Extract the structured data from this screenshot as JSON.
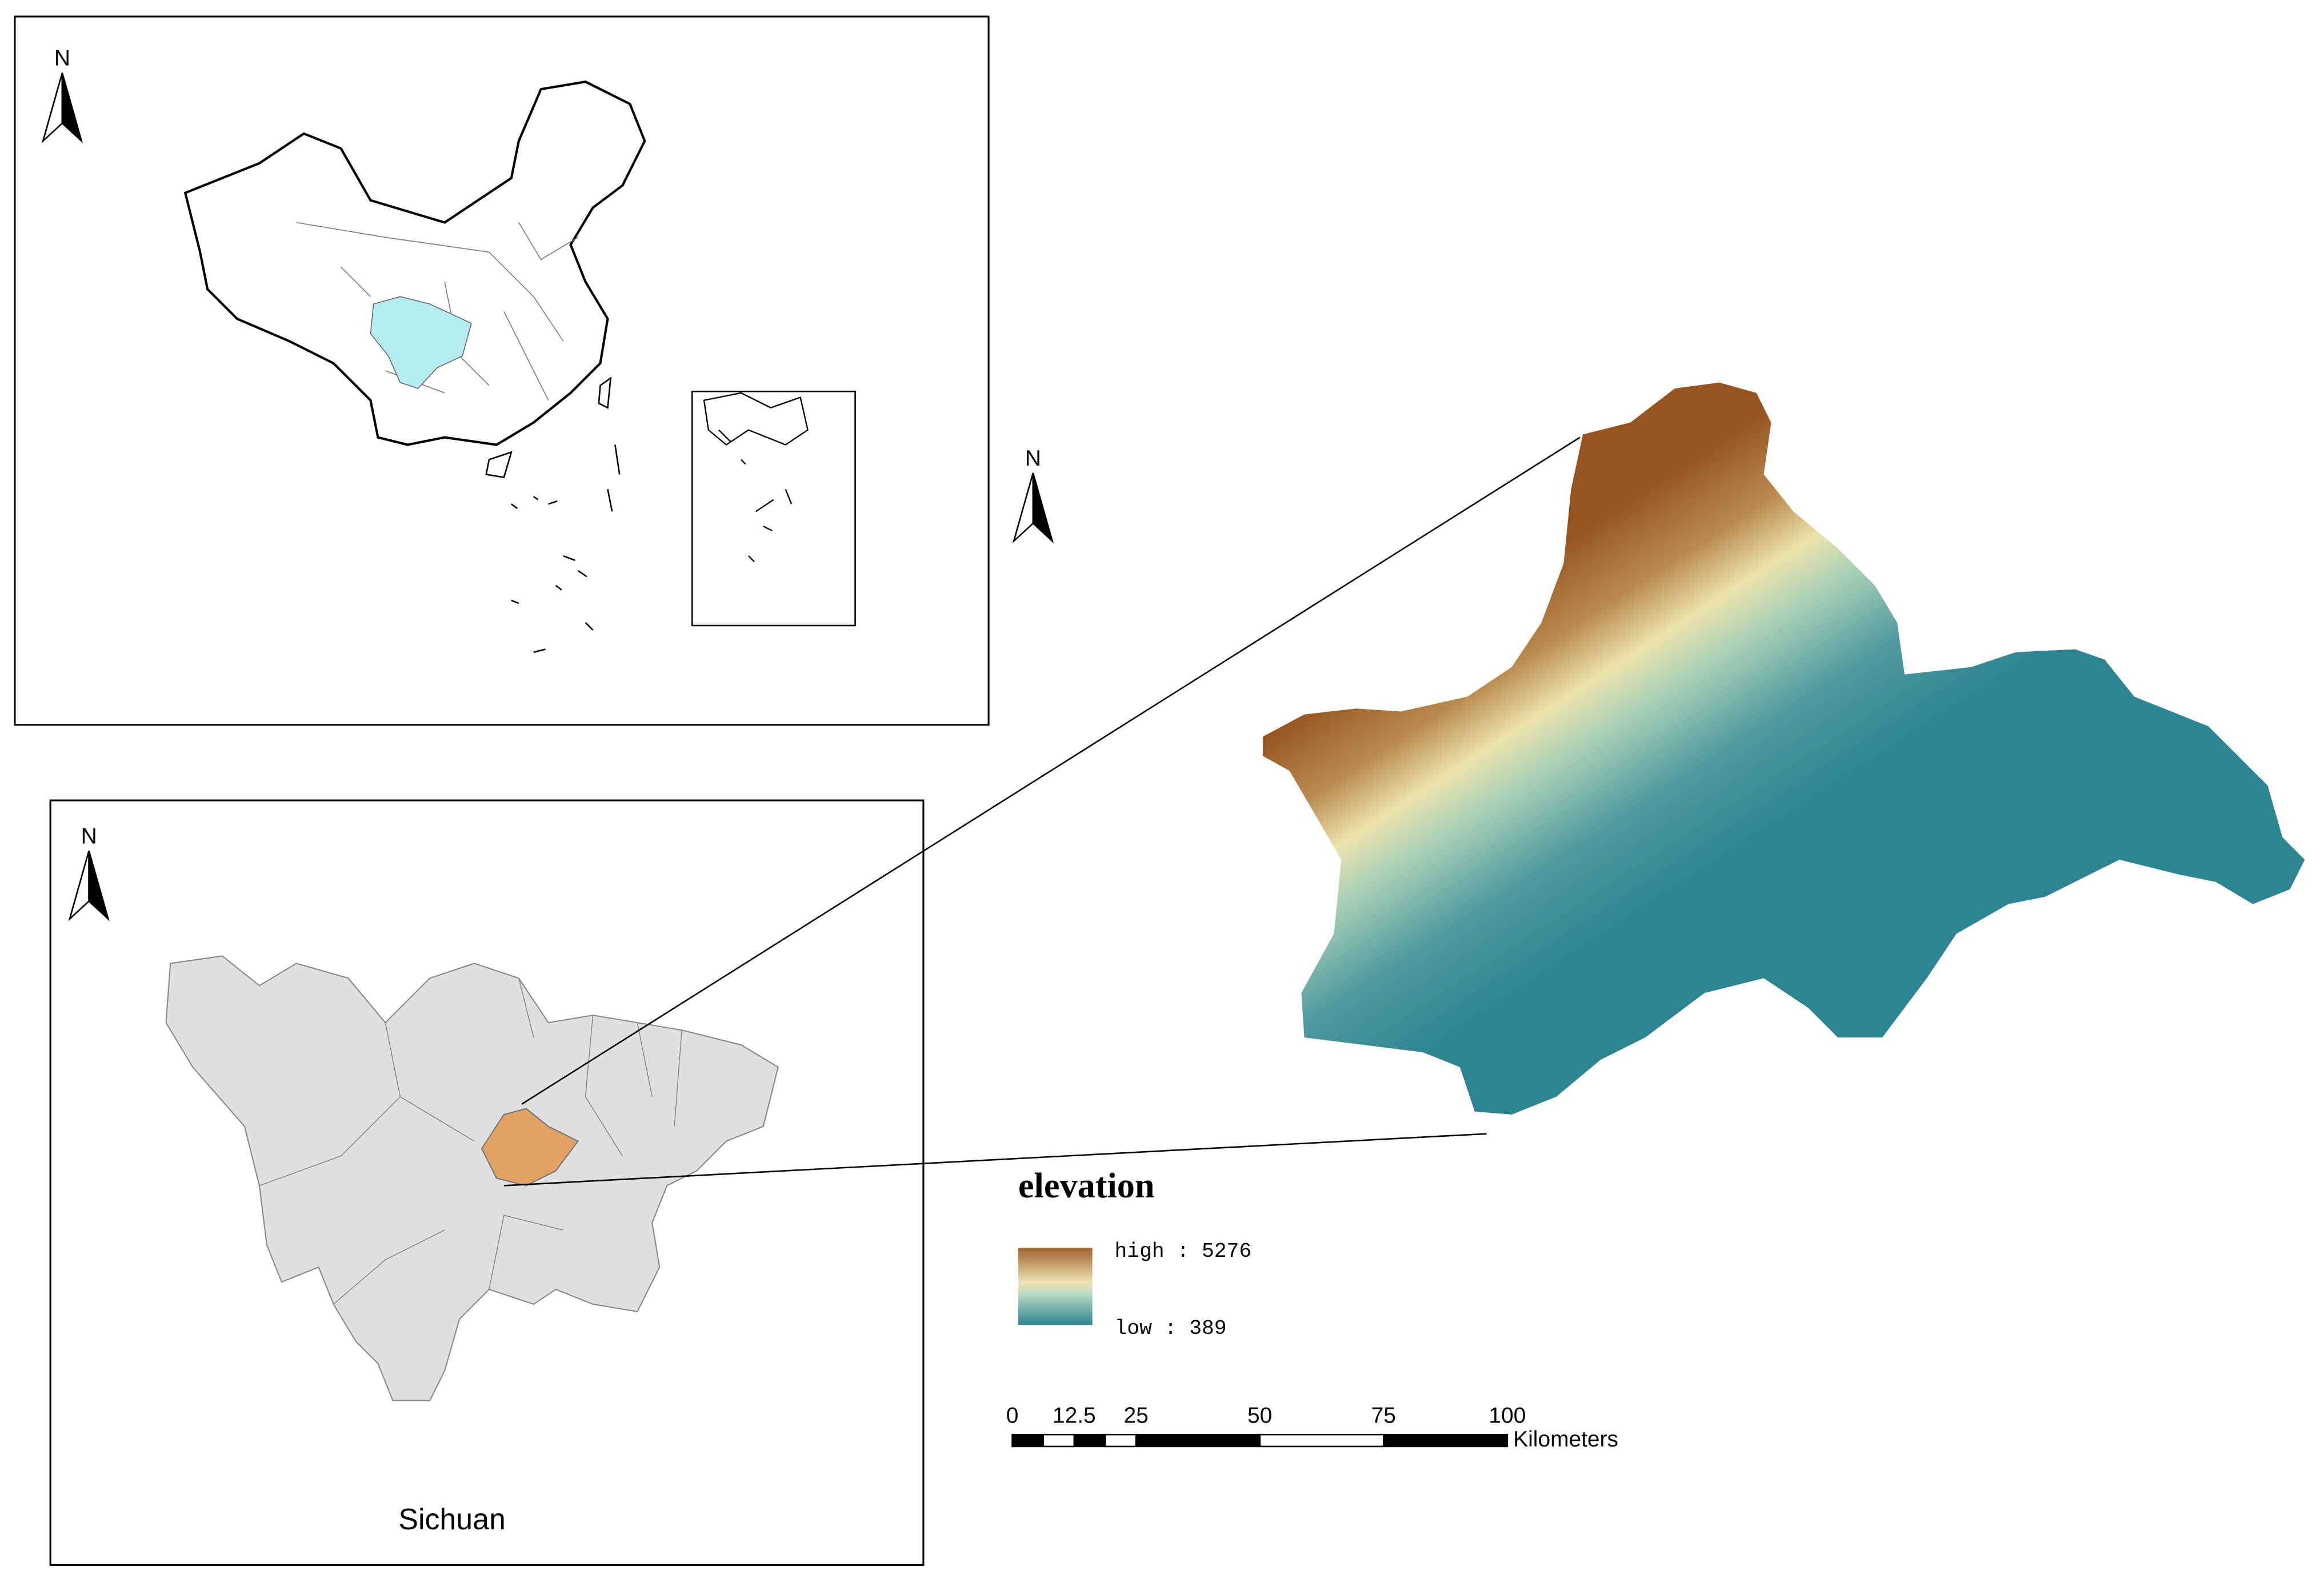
{
  "north_arrows": [
    "N",
    "N",
    "N"
  ],
  "sichuan_panel": {
    "label": "Sichuan"
  },
  "legend": {
    "title": "elevation",
    "high": "high : 5276",
    "low": "low : 389"
  },
  "scale_bar": {
    "ticks": [
      0,
      12.5,
      25,
      50,
      75,
      100
    ],
    "unit": "Kilometers"
  }
}
